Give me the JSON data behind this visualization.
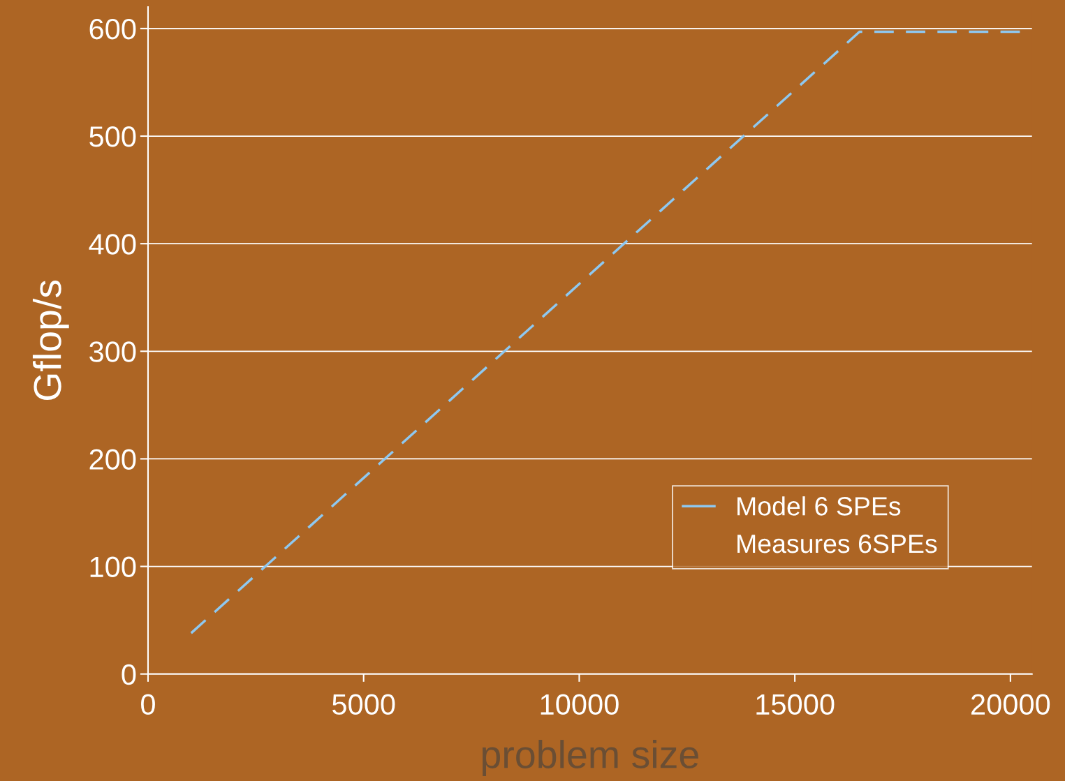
{
  "chart_data": {
    "type": "line",
    "xlabel": "problem size",
    "ylabel": "Gflop/s",
    "series": [
      {
        "name": "Model 6 SPEs",
        "color": "#8ec8f0",
        "x": [
          1000,
          16500,
          20500
        ],
        "values": [
          38,
          597,
          597
        ],
        "line_style": "dashed"
      },
      {
        "name": "Measures 6SPEs",
        "type": "scatter"
      }
    ],
    "xlim": [
      0,
      20500
    ],
    "xticks": [
      0,
      5000,
      10000,
      15000,
      20000
    ],
    "ylim": [
      0,
      620
    ],
    "yticks": [
      0,
      100,
      200,
      300,
      400,
      500,
      600
    ],
    "grid": "y",
    "legend": "right",
    "marker": "none"
  }
}
